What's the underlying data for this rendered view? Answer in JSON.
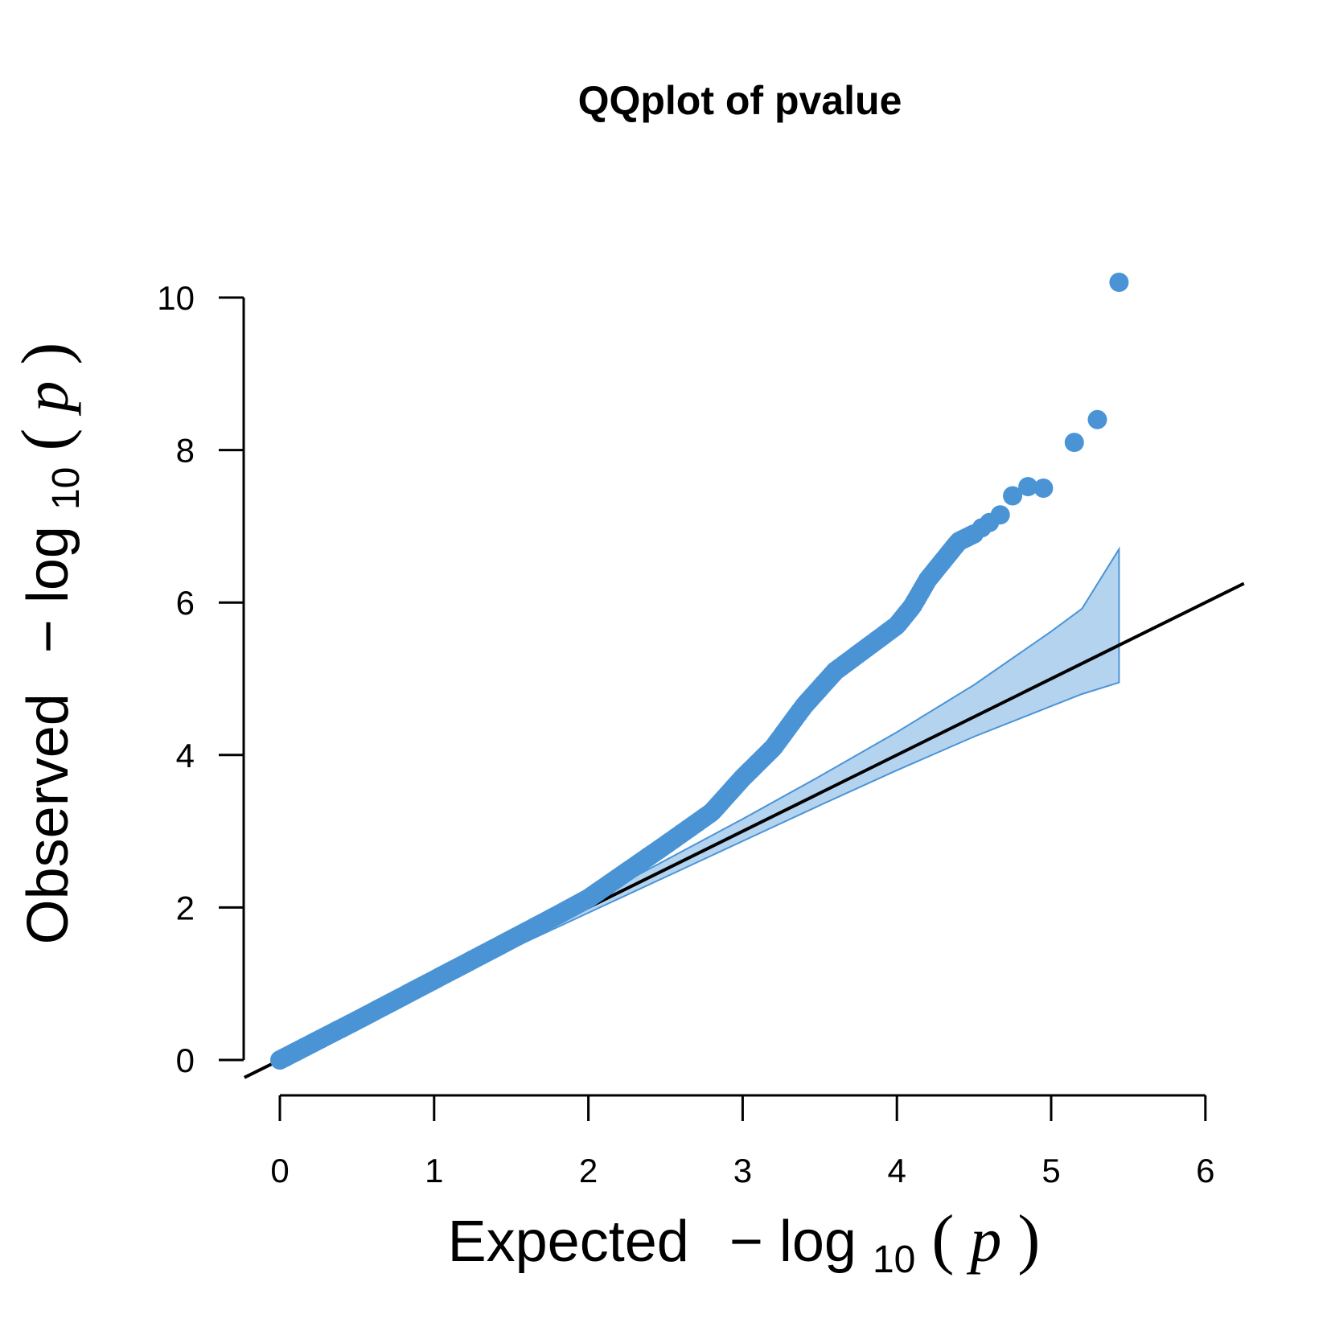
{
  "chart_data": {
    "type": "scatter",
    "title": "QQplot of pvalue",
    "xlabel": {
      "prefix": "Expected",
      "minus": "−",
      "log": "log",
      "base": "10",
      "open": "(",
      "var": "p",
      "close": ")"
    },
    "ylabel": {
      "prefix": "Observed",
      "minus": "−",
      "log": "log",
      "base": "10",
      "open": "(",
      "var": "p",
      "close": ")"
    },
    "xlim": [
      0,
      6
    ],
    "ylim": [
      0,
      10
    ],
    "x_ticks": [
      "0",
      "1",
      "2",
      "3",
      "4",
      "5",
      "6"
    ],
    "y_ticks": [
      "0",
      "2",
      "4",
      "6",
      "8",
      "10"
    ],
    "grid": false,
    "legend": "none",
    "point_color": "#4a94d6",
    "band_color": "#4a94d6",
    "band_fill": "#b4d3ef",
    "line_color": "#000000",
    "reference_line": {
      "slope": 1,
      "intercept": 0
    },
    "confidence_band": {
      "x": [
        1.5,
        2.0,
        2.5,
        3.0,
        3.5,
        4.0,
        4.5,
        5.0,
        5.2,
        5.44
      ],
      "upper": [
        1.55,
        2.08,
        2.62,
        3.16,
        3.72,
        4.3,
        4.92,
        5.62,
        5.92,
        6.7
      ],
      "lower": [
        1.46,
        1.93,
        2.4,
        2.87,
        3.34,
        3.8,
        4.24,
        4.64,
        4.8,
        4.95
      ]
    },
    "observed_curve": {
      "x": [
        0.0,
        0.5,
        1.0,
        1.5,
        1.8,
        2.0,
        2.2,
        2.5,
        2.8,
        3.0,
        3.2,
        3.4,
        3.6,
        3.8,
        4.0,
        4.1,
        4.2,
        4.3,
        4.4,
        4.5
      ],
      "y": [
        0.0,
        0.52,
        1.05,
        1.58,
        1.9,
        2.12,
        2.4,
        2.82,
        3.25,
        3.7,
        4.1,
        4.65,
        5.1,
        5.4,
        5.7,
        5.95,
        6.3,
        6.55,
        6.8,
        6.9
      ]
    },
    "tail_points": [
      {
        "x": 4.55,
        "y": 6.98
      },
      {
        "x": 4.6,
        "y": 7.05
      },
      {
        "x": 4.67,
        "y": 7.15
      },
      {
        "x": 4.75,
        "y": 7.4
      },
      {
        "x": 4.85,
        "y": 7.52
      },
      {
        "x": 4.95,
        "y": 7.5
      },
      {
        "x": 5.15,
        "y": 8.1
      },
      {
        "x": 5.3,
        "y": 8.4
      },
      {
        "x": 5.44,
        "y": 10.2
      }
    ]
  }
}
